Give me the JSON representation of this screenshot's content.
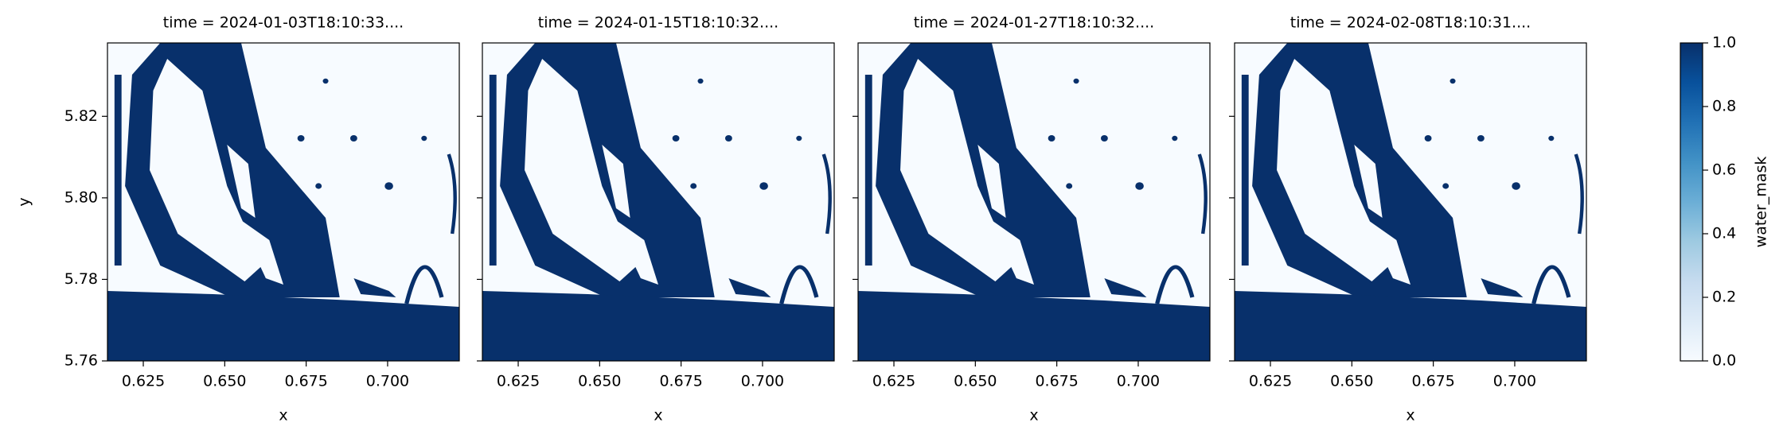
{
  "chart_data": [
    {
      "type": "heatmap",
      "title": "time = 2024-01-03T18:10:33....",
      "xlabel": "x",
      "ylabel": "y",
      "xlim": [
        0.614,
        0.722
      ],
      "ylim": [
        5.76,
        5.838
      ],
      "xticks": [
        0.625,
        {
          "value": 0.65,
          "label": "0.650"
        },
        0.675,
        {
          "value": 0.7,
          "label": "0.700"
        }
      ],
      "yticks": [
        5.76,
        5.78,
        {
          "value": 5.8,
          "label": "5.80"
        },
        5.82
      ]
    },
    {
      "type": "heatmap",
      "title": "time = 2024-01-15T18:10:32....",
      "xlabel": "x",
      "xlim": [
        0.614,
        0.722
      ],
      "ylim": [
        5.76,
        5.838
      ],
      "xticks": [
        0.625,
        {
          "value": 0.65,
          "label": "0.650"
        },
        0.675,
        {
          "value": 0.7,
          "label": "0.700"
        }
      ],
      "yticks": [
        5.76,
        5.78,
        5.8,
        5.82
      ]
    },
    {
      "type": "heatmap",
      "title": "time = 2024-01-27T18:10:32....",
      "xlabel": "x",
      "xlim": [
        0.614,
        0.722
      ],
      "ylim": [
        5.76,
        5.838
      ],
      "xticks": [
        0.625,
        {
          "value": 0.65,
          "label": "0.650"
        },
        0.675,
        {
          "value": 0.7,
          "label": "0.700"
        }
      ],
      "yticks": [
        5.76,
        5.78,
        5.8,
        5.82
      ]
    },
    {
      "type": "heatmap",
      "title": "time = 2024-02-08T18:10:31....",
      "xlabel": "x",
      "xlim": [
        0.614,
        0.722
      ],
      "ylim": [
        5.76,
        5.838
      ],
      "xticks": [
        0.625,
        {
          "value": 0.65,
          "label": "0.650"
        },
        0.675,
        {
          "value": 0.7,
          "label": "0.700"
        }
      ],
      "yticks": [
        5.76,
        5.78,
        5.8,
        5.82
      ]
    }
  ],
  "colorbar": {
    "label": "water_mask",
    "lim": [
      0,
      1
    ],
    "ticks": [
      {
        "value": 0,
        "label": "0.0"
      },
      {
        "value": 0.2,
        "label": "0.2"
      },
      {
        "value": 0.4,
        "label": "0.4"
      },
      {
        "value": 0.6,
        "label": "0.6"
      },
      {
        "value": 0.8,
        "label": "0.8"
      },
      {
        "value": 1,
        "label": "1.0"
      }
    ],
    "colormap": [
      "#f7fbff",
      "#deebf7",
      "#c6dbef",
      "#9ecae1",
      "#6baed6",
      "#4292c6",
      "#2171b5",
      "#08519c",
      "#08306b"
    ]
  }
}
